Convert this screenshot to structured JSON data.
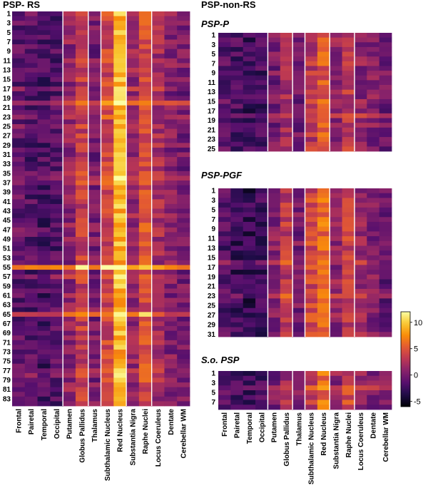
{
  "title_left": "PSP- RS",
  "title_right": "PSP-non-RS",
  "region_labels": [
    "Frontal",
    "Pairetal",
    "Temporal",
    "Occipital",
    "Putamen",
    "Globus Pallidus",
    "Thalamus",
    "Subthalamic Nucleus",
    "Red Nucleus",
    "Substantia Nigra",
    "Raphe Nuclei",
    "Locus Coeruleus",
    "Dentate",
    "Cerebellar WM"
  ],
  "colorbar": {
    "min": -6,
    "max": 12,
    "ticks": [
      "10",
      "5",
      "0",
      "-5"
    ],
    "tick_values": [
      10,
      5,
      0,
      -5
    ]
  },
  "chart_data": [
    {
      "type": "heatmap",
      "name": "PSP-RS",
      "title": "PSP- RS",
      "n_rows": 84,
      "row_tick_labels": [
        "1",
        "3",
        "5",
        "7",
        "9",
        "11",
        "13",
        "15",
        "17",
        "19",
        "21",
        "23",
        "25",
        "27",
        "29",
        "31",
        "33",
        "35",
        "37",
        "39",
        "41",
        "43",
        "45",
        "47",
        "49",
        "51",
        "53",
        "55",
        "57",
        "59",
        "61",
        "63",
        "65",
        "67",
        "69",
        "71",
        "73",
        "75",
        "77",
        "79",
        "81",
        "83"
      ],
      "columns": [
        "Frontal",
        "Pairetal",
        "Temporal",
        "Occipital",
        "Putamen",
        "Globus Pallidus",
        "Thalamus",
        "Subthalamic Nucleus",
        "Red Nucleus",
        "Substantia Nigra",
        "Raphe Nuclei",
        "Locus Coeruleus",
        "Dentate",
        "Cerebellar WM"
      ],
      "group_separators_after_columns": [
        4,
        6,
        7,
        9,
        11
      ],
      "row_profile": [
        2,
        1,
        1,
        1,
        1,
        1,
        1,
        1,
        1,
        1,
        1,
        1,
        1,
        1,
        1,
        1,
        2,
        1,
        1,
        4,
        1,
        1,
        2,
        1,
        2,
        1,
        1,
        1,
        1,
        1,
        1,
        1,
        1,
        1,
        2,
        3,
        3,
        1,
        1,
        1,
        1,
        1,
        1,
        1,
        1,
        1,
        2,
        1,
        1,
        1,
        1,
        1,
        1,
        1,
        9,
        1,
        3,
        1,
        1,
        1,
        1,
        1,
        1,
        1,
        6,
        1,
        1,
        1,
        1,
        1,
        1,
        1,
        1,
        1,
        1,
        1,
        2,
        3,
        1,
        1,
        1,
        1,
        1,
        1
      ],
      "column_means": [
        -1.0,
        -1.5,
        -2.0,
        -1.5,
        1.0,
        3.5,
        0.0,
        4.0,
        9.0,
        1.5,
        4.5,
        2.0,
        0.5,
        0.0
      ],
      "value_range": [
        -6,
        12
      ]
    },
    {
      "type": "heatmap",
      "name": "PSP-P",
      "title": "PSP-P",
      "n_rows": 25,
      "row_tick_labels": [
        "1",
        "3",
        "5",
        "7",
        "9",
        "11",
        "13",
        "15",
        "17",
        "19",
        "21",
        "23",
        "25"
      ],
      "columns": [
        "Frontal",
        "Pairetal",
        "Temporal",
        "Occipital",
        "Putamen",
        "Globus Pallidus",
        "Thalamus",
        "Subthalamic Nucleus",
        "Red Nucleus",
        "Substantia Nigra",
        "Raphe Nuclei",
        "Locus Coeruleus",
        "Dentate",
        "Cerebellar WM"
      ],
      "group_separators_after_columns": [
        4,
        6,
        7,
        9,
        11
      ],
      "column_means": [
        -1.0,
        -2.0,
        -2.5,
        -2.0,
        0.0,
        2.0,
        -0.5,
        3.0,
        5.0,
        1.0,
        3.0,
        1.0,
        0.5,
        -0.5
      ],
      "value_range": [
        -6,
        12
      ]
    },
    {
      "type": "heatmap",
      "name": "PSP-PGF",
      "title": "PSP-PGF",
      "n_rows": 31,
      "row_tick_labels": [
        "1",
        "3",
        "5",
        "7",
        "9",
        "11",
        "13",
        "15",
        "17",
        "19",
        "21",
        "23",
        "25",
        "27",
        "29",
        "31"
      ],
      "columns": [
        "Frontal",
        "Pairetal",
        "Temporal",
        "Occipital",
        "Putamen",
        "Globus Pallidus",
        "Thalamus",
        "Subthalamic Nucleus",
        "Red Nucleus",
        "Substantia Nigra",
        "Raphe Nuclei",
        "Locus Coeruleus",
        "Dentate",
        "Cerebellar WM"
      ],
      "group_separators_after_columns": [
        4,
        6,
        7,
        9,
        11
      ],
      "column_means": [
        -1.5,
        -2.5,
        -3.0,
        -2.5,
        0.5,
        3.0,
        0.0,
        4.0,
        6.0,
        1.0,
        3.5,
        1.5,
        0.5,
        -0.5
      ],
      "value_range": [
        -6,
        12
      ]
    },
    {
      "type": "heatmap",
      "name": "S.o. PSP",
      "title": "S.o. PSP",
      "n_rows": 8,
      "row_tick_labels": [
        "1",
        "3",
        "5",
        "7"
      ],
      "columns": [
        "Frontal",
        "Pairetal",
        "Temporal",
        "Occipital",
        "Putamen",
        "Globus Pallidus",
        "Thalamus",
        "Subthalamic Nucleus",
        "Red Nucleus",
        "Substantia Nigra",
        "Raphe Nuclei",
        "Locus Coeruleus",
        "Dentate",
        "Cerebellar WM"
      ],
      "group_separators_after_columns": [
        4,
        6,
        7,
        9,
        11
      ],
      "column_means": [
        -1.0,
        -2.0,
        -2.5,
        -2.0,
        0.0,
        2.0,
        0.0,
        3.0,
        6.0,
        1.0,
        4.0,
        1.0,
        0.5,
        0.0
      ],
      "value_range": [
        -6,
        12
      ]
    }
  ]
}
